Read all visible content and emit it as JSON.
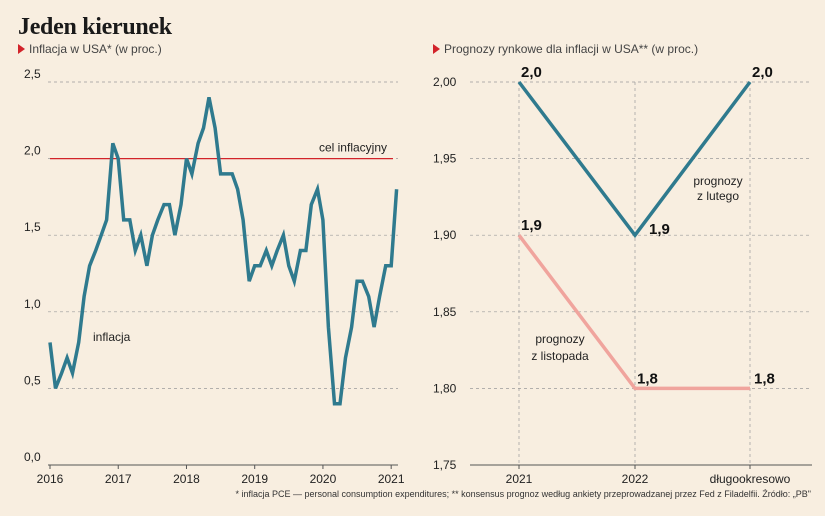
{
  "title": "Jeden kierunek",
  "footnote": "* inflacja PCE — personal consumption expenditures; ** konsensus prognoz według ankiety przeprowadzanej przez Fed z Filadelfii. Źródło: „PB\"",
  "colors": {
    "line": "#2f7a8e",
    "forecast_nov": "#f0a49d",
    "target": "#d2232a",
    "grid": "#9a9a9a",
    "background": "#f8eee0",
    "marker": "#d2232a"
  },
  "chart_data": [
    {
      "type": "line",
      "subtitle": "Inflacja w USA* (w proc.)",
      "ylim": [
        0,
        2.5
      ],
      "yticks": [
        "0,0",
        "0,5",
        "1,0",
        "1,5",
        "2,0",
        "2,5"
      ],
      "ytick_values": [
        0,
        0.5,
        1.0,
        1.5,
        2.0,
        2.5
      ],
      "xticks": [
        "2016",
        "2017",
        "2018",
        "2019",
        "2020",
        "2021"
      ],
      "xtick_values": [
        2016,
        2017,
        2018,
        2019,
        2020,
        2021
      ],
      "xlim": [
        2016,
        2021.1
      ],
      "grid": true,
      "target": {
        "label": "cel inflacyjny",
        "value": 2.0
      },
      "series": [
        {
          "name": "inflacja",
          "x": [
            2016.0,
            2016.08,
            2016.17,
            2016.25,
            2016.33,
            2016.42,
            2016.5,
            2016.58,
            2016.67,
            2016.75,
            2016.83,
            2016.92,
            2017.0,
            2017.08,
            2017.17,
            2017.25,
            2017.33,
            2017.42,
            2017.5,
            2017.58,
            2017.67,
            2017.75,
            2017.83,
            2017.92,
            2018.0,
            2018.08,
            2018.17,
            2018.25,
            2018.33,
            2018.42,
            2018.5,
            2018.58,
            2018.67,
            2018.75,
            2018.83,
            2018.92,
            2019.0,
            2019.08,
            2019.17,
            2019.25,
            2019.33,
            2019.42,
            2019.5,
            2019.58,
            2019.67,
            2019.75,
            2019.83,
            2019.92,
            2020.0,
            2020.08,
            2020.17,
            2020.25,
            2020.33,
            2020.42,
            2020.5,
            2020.58,
            2020.67,
            2020.75,
            2020.83,
            2020.92,
            2021.0,
            2021.08
          ],
          "values": [
            0.8,
            0.5,
            0.6,
            0.7,
            0.6,
            0.8,
            1.1,
            1.3,
            1.4,
            1.5,
            1.6,
            2.1,
            2.0,
            1.6,
            1.6,
            1.4,
            1.5,
            1.3,
            1.5,
            1.6,
            1.7,
            1.7,
            1.5,
            1.7,
            2.0,
            1.9,
            2.1,
            2.2,
            2.4,
            2.2,
            1.9,
            1.9,
            1.9,
            1.8,
            1.6,
            1.2,
            1.3,
            1.3,
            1.4,
            1.3,
            1.4,
            1.5,
            1.3,
            1.2,
            1.4,
            1.4,
            1.7,
            1.8,
            1.6,
            0.9,
            0.4,
            0.4,
            0.7,
            0.9,
            1.2,
            1.2,
            1.1,
            0.9,
            1.1,
            1.3,
            1.3,
            1.8
          ]
        }
      ],
      "annotations": [
        "inflacja"
      ]
    },
    {
      "type": "line",
      "subtitle": "Prognozy rynkowe dla inflacji w USA** (w proc.)",
      "ylim": [
        1.75,
        2.0
      ],
      "yticks": [
        "1,75",
        "1,80",
        "1,85",
        "1,90",
        "1,95",
        "2,00"
      ],
      "ytick_values": [
        1.75,
        1.8,
        1.85,
        1.9,
        1.95,
        2.0
      ],
      "categories": [
        "2021",
        "2022",
        "długookresowo"
      ],
      "grid": true,
      "series": [
        {
          "name_lines": [
            "prognozy",
            "z lutego"
          ],
          "values": [
            2.0,
            1.9,
            2.0
          ],
          "labels": [
            "2,0",
            "1,9",
            "2,0"
          ]
        },
        {
          "name_lines": [
            "prognozy",
            "z listopada"
          ],
          "values": [
            1.9,
            1.8,
            1.8
          ],
          "labels": [
            "1,9",
            "1,8",
            "1,8"
          ]
        }
      ]
    }
  ]
}
